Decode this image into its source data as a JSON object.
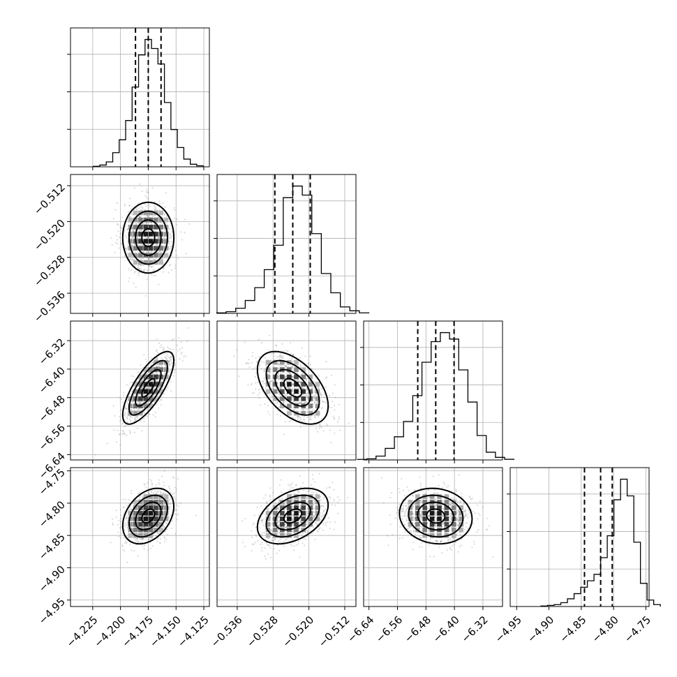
{
  "chart_data": {
    "type": "corner",
    "parameters": [
      {
        "index": 0,
        "range": [
          -4.245,
          -4.12
        ],
        "ticks": [
          -4.225,
          -4.2,
          -4.175,
          -4.15,
          -4.125
        ],
        "tick_labels": [
          "−4.225",
          "−4.200",
          "−4.175",
          "−4.150",
          "−4.125"
        ],
        "quantiles": [
          -4.1865,
          -4.175,
          -4.1635
        ],
        "histogram": [
          0.004,
          0.014,
          0.038,
          0.11,
          0.21,
          0.36,
          0.62,
          0.87,
          0.99,
          0.92,
          0.8,
          0.5,
          0.29,
          0.15,
          0.06,
          0.02,
          0.008
        ]
      },
      {
        "index": 1,
        "range": [
          -0.5405,
          -0.5095
        ],
        "ticks": [
          -0.536,
          -0.528,
          -0.52,
          -0.512
        ],
        "tick_labels": [
          "−0.536",
          "−0.528",
          "−0.520",
          "−0.512"
        ],
        "quantiles": [
          -0.5276,
          -0.5236,
          -0.5197
        ],
        "histogram": [
          0.004,
          0.013,
          0.04,
          0.1,
          0.2,
          0.34,
          0.53,
          0.9,
          0.99,
          0.92,
          0.62,
          0.31,
          0.16,
          0.05,
          0.02,
          0.004
        ]
      },
      {
        "index": 2,
        "range": [
          -6.655,
          -6.265
        ],
        "ticks": [
          -6.64,
          -6.56,
          -6.48,
          -6.4,
          -6.32
        ],
        "tick_labels": [
          "−6.64",
          "−6.56",
          "−6.48",
          "−6.40",
          "−6.32"
        ],
        "quantiles": [
          -6.503,
          -6.4525,
          -6.401
        ],
        "histogram": [
          0.004,
          0.009,
          0.03,
          0.09,
          0.18,
          0.3,
          0.5,
          0.76,
          0.92,
          0.99,
          0.94,
          0.7,
          0.45,
          0.19,
          0.06,
          0.02,
          0.005
        ]
      },
      {
        "index": 3,
        "range": [
          -4.96,
          -4.745
        ],
        "ticks": [
          -4.95,
          -4.9,
          -4.85,
          -4.8,
          -4.75
        ],
        "tick_labels": [
          "−4.95",
          "−4.90",
          "−4.85",
          "−4.80",
          "−4.75"
        ],
        "quantiles": [
          -4.845,
          -4.82,
          -4.802
        ],
        "histogram": [
          0.004,
          0.009,
          0.015,
          0.03,
          0.06,
          0.1,
          0.15,
          0.2,
          0.25,
          0.38,
          0.55,
          0.83,
          0.99,
          0.86,
          0.5,
          0.18,
          0.05,
          0.015
        ]
      }
    ],
    "correlations": {
      "0-1": 0.0,
      "0-2": 0.75,
      "0-3": 0.35,
      "1-2": -0.5,
      "1-3": 0.4,
      "2-3": -0.1
    },
    "colors": {
      "line": "#000000",
      "grid": "#b0b0b0",
      "scatter": "#7a7a7a"
    }
  }
}
